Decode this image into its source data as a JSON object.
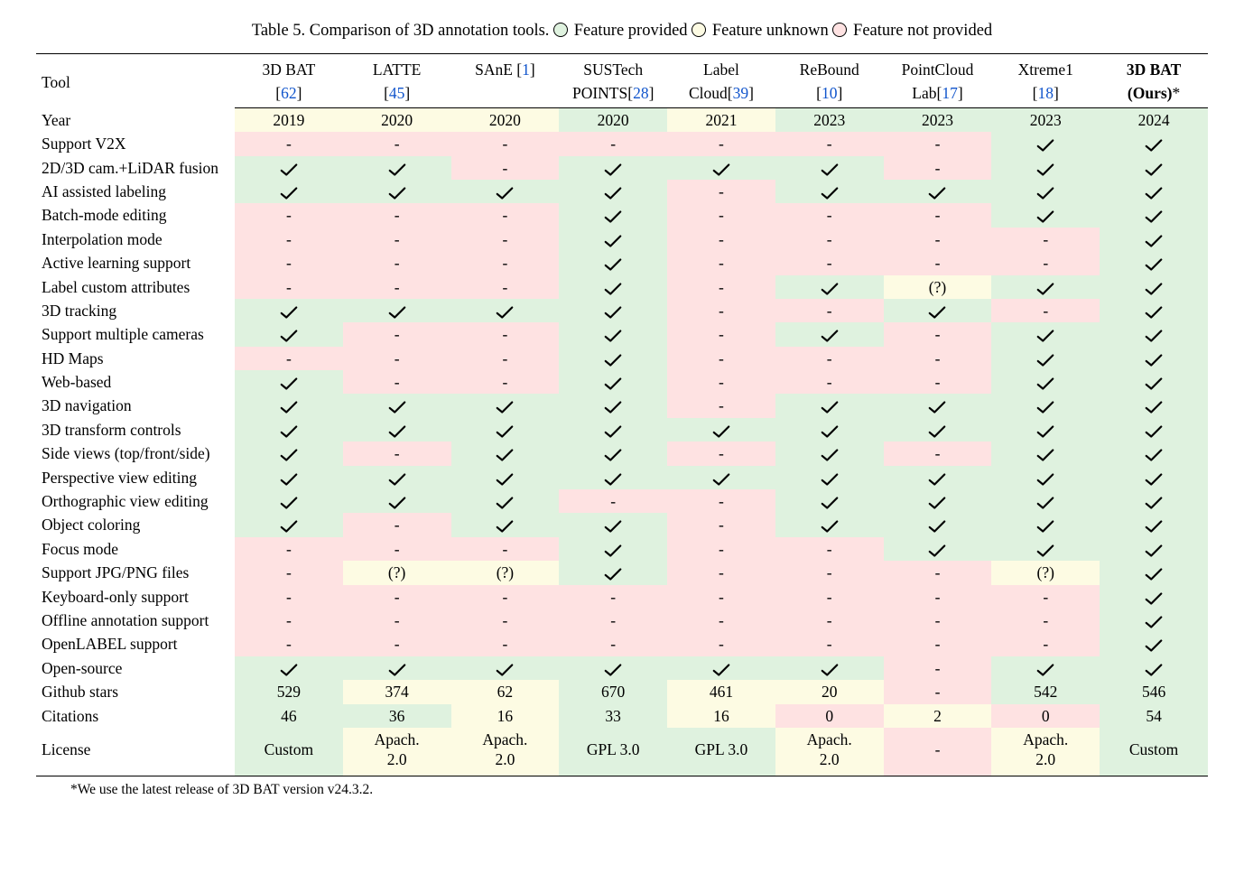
{
  "caption": {
    "prefix": "Table 5. Comparison of 3D annotation tools.",
    "legend_yes": "Feature provided",
    "legend_unk": "Feature unknown",
    "legend_no": "Feature not provided"
  },
  "colors": {
    "yes": "#dff2df",
    "no": "#fee2e2",
    "unk": "#fdfbe3",
    "link": "#1155cc",
    "rule": "#000000"
  },
  "header_label": "Tool",
  "tools": [
    {
      "l1": "3D BAT",
      "l2_pre": "[",
      "cite": "62",
      "l2_post": "]"
    },
    {
      "l1": "LATTE",
      "l2_pre": "[",
      "cite": "45",
      "l2_post": "]"
    },
    {
      "l1_pre": "SAnE ",
      "l1_cite_open": "[",
      "cite": "1",
      "l1_cite_close": "]",
      "l2": ""
    },
    {
      "l1": "SUSTech",
      "l2_pre": "POINTS[",
      "cite": "28",
      "l2_post": "]"
    },
    {
      "l1": "Label",
      "l2_pre": "Cloud[",
      "cite": "39",
      "l2_post": "]"
    },
    {
      "l1": "ReBound",
      "l2_pre": "[",
      "cite": "10",
      "l2_post": "]"
    },
    {
      "l1": "PointCloud",
      "l2_pre": "Lab[",
      "cite": "17",
      "l2_post": "]"
    },
    {
      "l1": "Xtreme1",
      "l2_pre": "[",
      "cite": "18",
      "l2_post": "]"
    },
    {
      "l1": "3D BAT",
      "l2": "(Ours)",
      "l2_suffix": "*",
      "bold": true
    }
  ],
  "rows": [
    {
      "label": "Year",
      "cells": [
        {
          "t": "2019",
          "s": "unk"
        },
        {
          "t": "2020",
          "s": "unk"
        },
        {
          "t": "2020",
          "s": "unk"
        },
        {
          "t": "2020",
          "s": "yes"
        },
        {
          "t": "2021",
          "s": "unk"
        },
        {
          "t": "2023",
          "s": "yes"
        },
        {
          "t": "2023",
          "s": "yes"
        },
        {
          "t": "2023",
          "s": "yes"
        },
        {
          "t": "2024",
          "s": "yes"
        }
      ]
    },
    {
      "label": "Support V2X",
      "cells": [
        {
          "t": "-",
          "s": "no"
        },
        {
          "t": "-",
          "s": "no"
        },
        {
          "t": "-",
          "s": "no"
        },
        {
          "t": "-",
          "s": "no"
        },
        {
          "t": "-",
          "s": "no"
        },
        {
          "t": "-",
          "s": "no"
        },
        {
          "t": "-",
          "s": "no"
        },
        {
          "t": "check",
          "s": "yes"
        },
        {
          "t": "check",
          "s": "yes"
        }
      ]
    },
    {
      "label": "2D/3D cam.+LiDAR fusion",
      "cells": [
        {
          "t": "check",
          "s": "yes"
        },
        {
          "t": "check",
          "s": "yes"
        },
        {
          "t": "-",
          "s": "no"
        },
        {
          "t": "check",
          "s": "yes"
        },
        {
          "t": "check",
          "s": "yes"
        },
        {
          "t": "check",
          "s": "yes"
        },
        {
          "t": "-",
          "s": "no"
        },
        {
          "t": "check",
          "s": "yes"
        },
        {
          "t": "check",
          "s": "yes"
        }
      ]
    },
    {
      "label": "AI assisted labeling",
      "cells": [
        {
          "t": "check",
          "s": "yes"
        },
        {
          "t": "check",
          "s": "yes"
        },
        {
          "t": "check",
          "s": "yes"
        },
        {
          "t": "check",
          "s": "yes"
        },
        {
          "t": "-",
          "s": "no"
        },
        {
          "t": "check",
          "s": "yes"
        },
        {
          "t": "check",
          "s": "yes"
        },
        {
          "t": "check",
          "s": "yes"
        },
        {
          "t": "check",
          "s": "yes"
        }
      ]
    },
    {
      "label": "Batch-mode editing",
      "cells": [
        {
          "t": "-",
          "s": "no"
        },
        {
          "t": "-",
          "s": "no"
        },
        {
          "t": "-",
          "s": "no"
        },
        {
          "t": "check",
          "s": "yes"
        },
        {
          "t": "-",
          "s": "no"
        },
        {
          "t": "-",
          "s": "no"
        },
        {
          "t": "-",
          "s": "no"
        },
        {
          "t": "check",
          "s": "yes"
        },
        {
          "t": "check",
          "s": "yes"
        }
      ]
    },
    {
      "label": "Interpolation mode",
      "cells": [
        {
          "t": "-",
          "s": "no"
        },
        {
          "t": "-",
          "s": "no"
        },
        {
          "t": "-",
          "s": "no"
        },
        {
          "t": "check",
          "s": "yes"
        },
        {
          "t": "-",
          "s": "no"
        },
        {
          "t": "-",
          "s": "no"
        },
        {
          "t": "-",
          "s": "no"
        },
        {
          "t": "-",
          "s": "no"
        },
        {
          "t": "check",
          "s": "yes"
        }
      ]
    },
    {
      "label": "Active learning support",
      "cells": [
        {
          "t": "-",
          "s": "no"
        },
        {
          "t": "-",
          "s": "no"
        },
        {
          "t": "-",
          "s": "no"
        },
        {
          "t": "check",
          "s": "yes"
        },
        {
          "t": "-",
          "s": "no"
        },
        {
          "t": "-",
          "s": "no"
        },
        {
          "t": "-",
          "s": "no"
        },
        {
          "t": "-",
          "s": "no"
        },
        {
          "t": "check",
          "s": "yes"
        }
      ]
    },
    {
      "label": "Label custom attributes",
      "cells": [
        {
          "t": "-",
          "s": "no"
        },
        {
          "t": "-",
          "s": "no"
        },
        {
          "t": "-",
          "s": "no"
        },
        {
          "t": "check",
          "s": "yes"
        },
        {
          "t": "-",
          "s": "no"
        },
        {
          "t": "check",
          "s": "yes"
        },
        {
          "t": "(?)",
          "s": "unk"
        },
        {
          "t": "check",
          "s": "yes"
        },
        {
          "t": "check",
          "s": "yes"
        }
      ]
    },
    {
      "label": "3D tracking",
      "cells": [
        {
          "t": "check",
          "s": "yes"
        },
        {
          "t": "check",
          "s": "yes"
        },
        {
          "t": "check",
          "s": "yes"
        },
        {
          "t": "check",
          "s": "yes"
        },
        {
          "t": "-",
          "s": "no"
        },
        {
          "t": "-",
          "s": "no"
        },
        {
          "t": "check",
          "s": "yes"
        },
        {
          "t": "-",
          "s": "no"
        },
        {
          "t": "check",
          "s": "yes"
        }
      ]
    },
    {
      "label": "Support multiple cameras",
      "cells": [
        {
          "t": "check",
          "s": "yes"
        },
        {
          "t": "-",
          "s": "no"
        },
        {
          "t": "-",
          "s": "no"
        },
        {
          "t": "check",
          "s": "yes"
        },
        {
          "t": "-",
          "s": "no"
        },
        {
          "t": "check",
          "s": "yes"
        },
        {
          "t": "-",
          "s": "no"
        },
        {
          "t": "check",
          "s": "yes"
        },
        {
          "t": "check",
          "s": "yes"
        }
      ]
    },
    {
      "label": "HD Maps",
      "cells": [
        {
          "t": "-",
          "s": "no"
        },
        {
          "t": "-",
          "s": "no"
        },
        {
          "t": "-",
          "s": "no"
        },
        {
          "t": "check",
          "s": "yes"
        },
        {
          "t": "-",
          "s": "no"
        },
        {
          "t": "-",
          "s": "no"
        },
        {
          "t": "-",
          "s": "no"
        },
        {
          "t": "check",
          "s": "yes"
        },
        {
          "t": "check",
          "s": "yes"
        }
      ]
    },
    {
      "label": "Web-based",
      "cells": [
        {
          "t": "check",
          "s": "yes"
        },
        {
          "t": "-",
          "s": "no"
        },
        {
          "t": "-",
          "s": "no"
        },
        {
          "t": "check",
          "s": "yes"
        },
        {
          "t": "-",
          "s": "no"
        },
        {
          "t": "-",
          "s": "no"
        },
        {
          "t": "-",
          "s": "no"
        },
        {
          "t": "check",
          "s": "yes"
        },
        {
          "t": "check",
          "s": "yes"
        }
      ]
    },
    {
      "label": "3D navigation",
      "cells": [
        {
          "t": "check",
          "s": "yes"
        },
        {
          "t": "check",
          "s": "yes"
        },
        {
          "t": "check",
          "s": "yes"
        },
        {
          "t": "check",
          "s": "yes"
        },
        {
          "t": "-",
          "s": "no"
        },
        {
          "t": "check",
          "s": "yes"
        },
        {
          "t": "check",
          "s": "yes"
        },
        {
          "t": "check",
          "s": "yes"
        },
        {
          "t": "check",
          "s": "yes"
        }
      ]
    },
    {
      "label": "3D transform controls",
      "cells": [
        {
          "t": "check",
          "s": "yes"
        },
        {
          "t": "check",
          "s": "yes"
        },
        {
          "t": "check",
          "s": "yes"
        },
        {
          "t": "check",
          "s": "yes"
        },
        {
          "t": "check",
          "s": "yes"
        },
        {
          "t": "check",
          "s": "yes"
        },
        {
          "t": "check",
          "s": "yes"
        },
        {
          "t": "check",
          "s": "yes"
        },
        {
          "t": "check",
          "s": "yes"
        }
      ]
    },
    {
      "label": "Side views (top/front/side)",
      "cells": [
        {
          "t": "check",
          "s": "yes"
        },
        {
          "t": "-",
          "s": "no"
        },
        {
          "t": "check",
          "s": "yes"
        },
        {
          "t": "check",
          "s": "yes"
        },
        {
          "t": "-",
          "s": "no"
        },
        {
          "t": "check",
          "s": "yes"
        },
        {
          "t": "-",
          "s": "no"
        },
        {
          "t": "check",
          "s": "yes"
        },
        {
          "t": "check",
          "s": "yes"
        }
      ]
    },
    {
      "label": "Perspective view editing",
      "cells": [
        {
          "t": "check",
          "s": "yes"
        },
        {
          "t": "check",
          "s": "yes"
        },
        {
          "t": "check",
          "s": "yes"
        },
        {
          "t": "check",
          "s": "yes"
        },
        {
          "t": "check",
          "s": "yes"
        },
        {
          "t": "check",
          "s": "yes"
        },
        {
          "t": "check",
          "s": "yes"
        },
        {
          "t": "check",
          "s": "yes"
        },
        {
          "t": "check",
          "s": "yes"
        }
      ]
    },
    {
      "label": "Orthographic view editing",
      "cells": [
        {
          "t": "check",
          "s": "yes"
        },
        {
          "t": "check",
          "s": "yes"
        },
        {
          "t": "check",
          "s": "yes"
        },
        {
          "t": "-",
          "s": "no"
        },
        {
          "t": "-",
          "s": "no"
        },
        {
          "t": "check",
          "s": "yes"
        },
        {
          "t": "check",
          "s": "yes"
        },
        {
          "t": "check",
          "s": "yes"
        },
        {
          "t": "check",
          "s": "yes"
        }
      ]
    },
    {
      "label": "Object coloring",
      "cells": [
        {
          "t": "check",
          "s": "yes"
        },
        {
          "t": "-",
          "s": "no"
        },
        {
          "t": "check",
          "s": "yes"
        },
        {
          "t": "check",
          "s": "yes"
        },
        {
          "t": "-",
          "s": "no"
        },
        {
          "t": "check",
          "s": "yes"
        },
        {
          "t": "check",
          "s": "yes"
        },
        {
          "t": "check",
          "s": "yes"
        },
        {
          "t": "check",
          "s": "yes"
        }
      ]
    },
    {
      "label": "Focus mode",
      "cells": [
        {
          "t": "-",
          "s": "no"
        },
        {
          "t": "-",
          "s": "no"
        },
        {
          "t": "-",
          "s": "no"
        },
        {
          "t": "check",
          "s": "yes"
        },
        {
          "t": "-",
          "s": "no"
        },
        {
          "t": "-",
          "s": "no"
        },
        {
          "t": "check",
          "s": "yes"
        },
        {
          "t": "check",
          "s": "yes"
        },
        {
          "t": "check",
          "s": "yes"
        }
      ]
    },
    {
      "label": "Support JPG/PNG files",
      "cells": [
        {
          "t": "-",
          "s": "no"
        },
        {
          "t": "(?)",
          "s": "unk"
        },
        {
          "t": "(?)",
          "s": "unk"
        },
        {
          "t": "check",
          "s": "yes"
        },
        {
          "t": "-",
          "s": "no"
        },
        {
          "t": "-",
          "s": "no"
        },
        {
          "t": "-",
          "s": "no"
        },
        {
          "t": "(?)",
          "s": "unk"
        },
        {
          "t": "check",
          "s": "yes"
        }
      ]
    },
    {
      "label": "Keyboard-only support",
      "cells": [
        {
          "t": "-",
          "s": "no"
        },
        {
          "t": "-",
          "s": "no"
        },
        {
          "t": "-",
          "s": "no"
        },
        {
          "t": "-",
          "s": "no"
        },
        {
          "t": "-",
          "s": "no"
        },
        {
          "t": "-",
          "s": "no"
        },
        {
          "t": "-",
          "s": "no"
        },
        {
          "t": "-",
          "s": "no"
        },
        {
          "t": "check",
          "s": "yes"
        }
      ]
    },
    {
      "label": "Offline annotation support",
      "cells": [
        {
          "t": "-",
          "s": "no"
        },
        {
          "t": "-",
          "s": "no"
        },
        {
          "t": "-",
          "s": "no"
        },
        {
          "t": "-",
          "s": "no"
        },
        {
          "t": "-",
          "s": "no"
        },
        {
          "t": "-",
          "s": "no"
        },
        {
          "t": "-",
          "s": "no"
        },
        {
          "t": "-",
          "s": "no"
        },
        {
          "t": "check",
          "s": "yes"
        }
      ]
    },
    {
      "label": "OpenLABEL support",
      "cells": [
        {
          "t": "-",
          "s": "no"
        },
        {
          "t": "-",
          "s": "no"
        },
        {
          "t": "-",
          "s": "no"
        },
        {
          "t": "-",
          "s": "no"
        },
        {
          "t": "-",
          "s": "no"
        },
        {
          "t": "-",
          "s": "no"
        },
        {
          "t": "-",
          "s": "no"
        },
        {
          "t": "-",
          "s": "no"
        },
        {
          "t": "check",
          "s": "yes"
        }
      ]
    },
    {
      "label": "Open-source",
      "cells": [
        {
          "t": "check",
          "s": "yes"
        },
        {
          "t": "check",
          "s": "yes"
        },
        {
          "t": "check",
          "s": "yes"
        },
        {
          "t": "check",
          "s": "yes"
        },
        {
          "t": "check",
          "s": "yes"
        },
        {
          "t": "check",
          "s": "yes"
        },
        {
          "t": "-",
          "s": "no"
        },
        {
          "t": "check",
          "s": "yes"
        },
        {
          "t": "check",
          "s": "yes"
        }
      ]
    },
    {
      "label": "Github stars",
      "cells": [
        {
          "t": "529",
          "s": "yes"
        },
        {
          "t": "374",
          "s": "unk"
        },
        {
          "t": "62",
          "s": "unk"
        },
        {
          "t": "670",
          "s": "yes"
        },
        {
          "t": "461",
          "s": "unk"
        },
        {
          "t": "20",
          "s": "unk"
        },
        {
          "t": "-",
          "s": "no"
        },
        {
          "t": "542",
          "s": "yes"
        },
        {
          "t": "546",
          "s": "yes"
        }
      ]
    },
    {
      "label": "Citations",
      "cells": [
        {
          "t": "46",
          "s": "yes"
        },
        {
          "t": "36",
          "s": "yes"
        },
        {
          "t": "16",
          "s": "unk"
        },
        {
          "t": "33",
          "s": "yes"
        },
        {
          "t": "16",
          "s": "unk"
        },
        {
          "t": "0",
          "s": "no"
        },
        {
          "t": "2",
          "s": "unk"
        },
        {
          "t": "0",
          "s": "no"
        },
        {
          "t": "54",
          "s": "yes"
        }
      ]
    },
    {
      "label": "License",
      "cells": [
        {
          "t": "Custom",
          "s": "yes"
        },
        {
          "t": "Apach. 2.0",
          "s": "unk"
        },
        {
          "t": "Apach. 2.0",
          "s": "unk"
        },
        {
          "t": "GPL 3.0",
          "s": "yes"
        },
        {
          "t": "GPL 3.0",
          "s": "yes"
        },
        {
          "t": "Apach. 2.0",
          "s": "unk"
        },
        {
          "t": "-",
          "s": "no"
        },
        {
          "t": "Apach. 2.0",
          "s": "unk"
        },
        {
          "t": "Custom",
          "s": "yes"
        }
      ]
    }
  ],
  "footnote": "*We use the latest release of 3D BAT version v24.3.2."
}
